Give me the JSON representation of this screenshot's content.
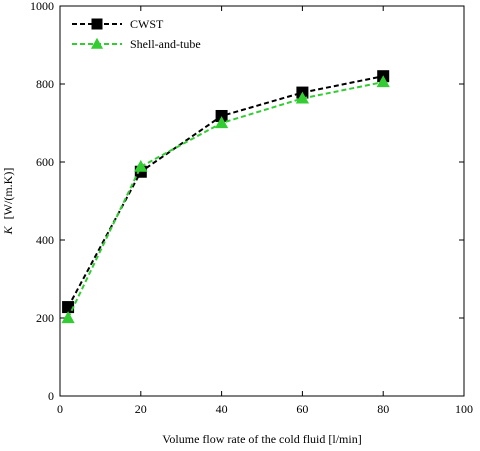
{
  "chart_data": {
    "type": "line",
    "title": "",
    "xlabel": "Volume flow rate of the cold fluid [l/min]",
    "ylabel_symbol": "K",
    "ylabel_unit": "[W/(m.K)]",
    "xlim": [
      0,
      100
    ],
    "ylim": [
      0,
      1000
    ],
    "x_ticks": [
      0,
      20,
      40,
      60,
      80,
      100
    ],
    "y_ticks": [
      0,
      200,
      400,
      600,
      800,
      1000
    ],
    "grid": false,
    "legend_position": "top-left",
    "series": [
      {
        "name": "CWST",
        "marker": "square",
        "line_style": "dashed",
        "color": "#000000",
        "x": [
          2,
          20,
          40,
          60,
          80
        ],
        "y": [
          228,
          575,
          718,
          778,
          820
        ]
      },
      {
        "name": "Shell-and-tube",
        "marker": "triangle",
        "line_style": "dashed",
        "color": "#33cc33",
        "x": [
          2,
          20,
          40,
          60,
          80
        ],
        "y": [
          200,
          588,
          700,
          763,
          805
        ]
      }
    ]
  }
}
